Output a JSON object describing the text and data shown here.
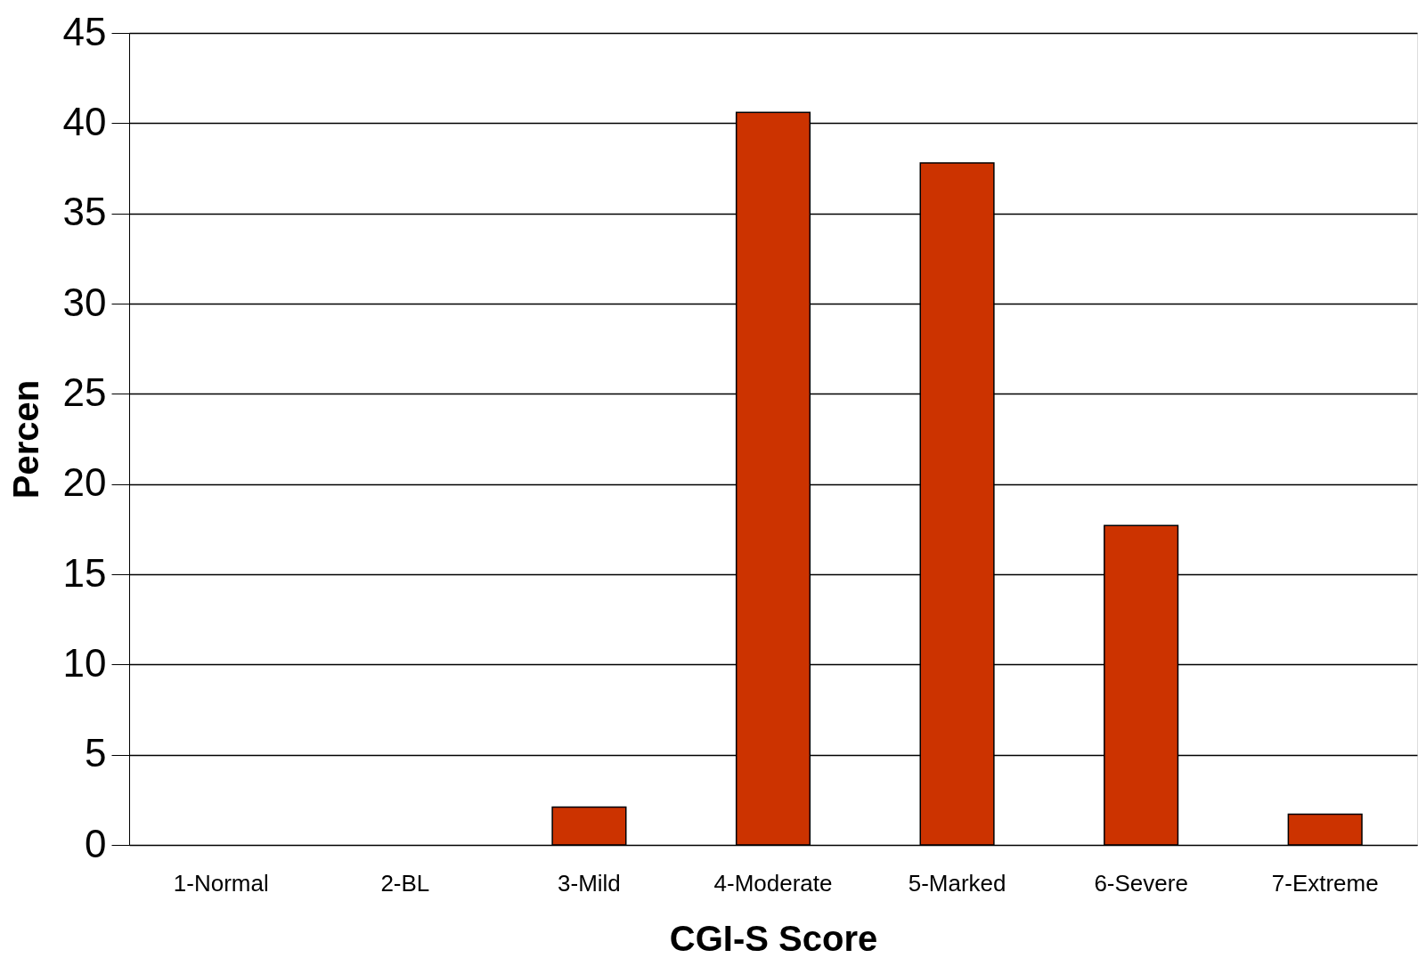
{
  "chart_data": {
    "type": "bar",
    "xlabel": "CGI-S Score",
    "ylabel": "Percen",
    "categories": [
      "1-Normal",
      "2-BL",
      "3-Mild",
      "4-Moderate",
      "5-Marked",
      "6-Severe",
      "7-Extreme"
    ],
    "values": [
      0,
      0,
      2.1,
      40.6,
      37.8,
      17.7,
      1.7
    ],
    "color": "#cc3300",
    "ylim": [
      0,
      45
    ],
    "yticks": [
      0,
      5,
      10,
      15,
      20,
      25,
      30,
      35,
      40,
      45
    ],
    "grid": "y"
  }
}
